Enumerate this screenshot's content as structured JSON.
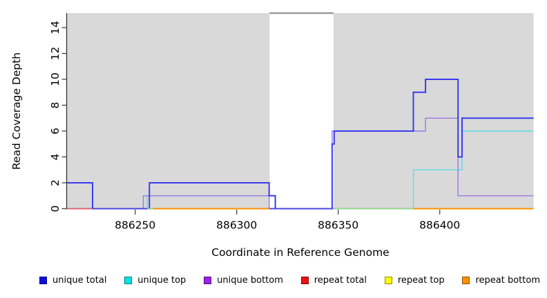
{
  "chart_data": {
    "type": "line",
    "subtype": "step",
    "title": "",
    "xlabel": "Coordinate in Reference Genome",
    "ylabel": "Read Coverage Depth",
    "xlim": [
      886216.4,
      886446.2
    ],
    "ylim": [
      0,
      15.2
    ],
    "x_ticks": [
      886250,
      886300,
      886350,
      886400
    ],
    "y_ticks": [
      0,
      2,
      4,
      6,
      8,
      10,
      12,
      14
    ],
    "grid": false,
    "legend_position": "bottom",
    "background_shading": {
      "color": "#d9d9d9",
      "top_value": 15.12,
      "regions": [
        [
          886216.4,
          886316.2
        ],
        [
          886347.7,
          886446.2
        ]
      ]
    },
    "gap_bridge_line": {
      "color": "#9a9a9a",
      "from": 886316.2,
      "to": 886347.7,
      "value": 15.12
    },
    "series": [
      {
        "name": "unique total",
        "color": "#3a3aef",
        "legend_color": "#0d0de0",
        "width": 2,
        "z": 6,
        "steps": [
          [
            886216,
            2
          ],
          [
            886229,
            0
          ],
          [
            886257,
            2
          ],
          [
            886316,
            1
          ],
          [
            886319,
            0
          ],
          [
            886347,
            5
          ],
          [
            886348,
            6
          ],
          [
            886387,
            9
          ],
          [
            886393,
            10
          ],
          [
            886409,
            4
          ],
          [
            886411,
            7
          ]
        ]
      },
      {
        "name": "unique top",
        "color": "#5cdde6",
        "legend_color": "#00e5e5",
        "width": 1.4,
        "z": 4,
        "steps": [
          [
            886216,
            0
          ],
          [
            886256,
            1
          ],
          [
            886319,
            0
          ],
          [
            886387,
            3
          ],
          [
            886411,
            6
          ]
        ]
      },
      {
        "name": "unique bottom",
        "color": "#9a78e6",
        "legend_color": "#9c20e8",
        "width": 1.4,
        "z": 5,
        "steps": [
          [
            886216,
            0
          ],
          [
            886254,
            1
          ],
          [
            886316,
            0
          ],
          [
            886347,
            6
          ],
          [
            886393,
            7
          ],
          [
            886409,
            1
          ]
        ]
      },
      {
        "name": "repeat total",
        "color": "#e02020",
        "legend_color": "#ee1111",
        "width": 1.2,
        "z": 1,
        "steps": [
          [
            886216,
            0
          ]
        ]
      },
      {
        "name": "repeat top",
        "color": "#ffff00",
        "legend_color": "#ffff00",
        "width": 1.2,
        "z": 2,
        "steps": [
          [
            886216,
            0
          ]
        ]
      },
      {
        "name": "repeat bottom",
        "color": "#ff9100",
        "legend_color": "#ff9100",
        "width": 2,
        "z": 3,
        "steps": [
          [
            886216,
            0
          ]
        ]
      }
    ],
    "baseline_segments": [
      {
        "from": 886216,
        "to": 886229,
        "color": "#e25e70"
      },
      {
        "from": 886229,
        "to": 886256,
        "color": "#4d46de"
      },
      {
        "from": 886256,
        "to": 886259,
        "color": "#8fd98f"
      },
      {
        "from": 886259,
        "to": 886316,
        "color": "#ff9100"
      },
      {
        "from": 886316,
        "to": 886347,
        "color": "#4d46de"
      },
      {
        "from": 886348,
        "to": 886387,
        "color": "#93da95"
      },
      {
        "from": 886387,
        "to": 886446.2,
        "color": "#ff9100"
      }
    ]
  }
}
